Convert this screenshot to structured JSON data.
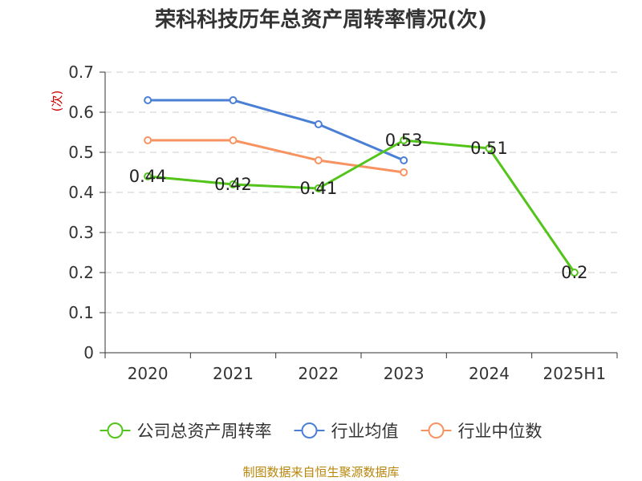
{
  "chart_data": {
    "type": "line",
    "title": "荣科科技历年总资产周转率情况(次)",
    "ylabel": "(次)",
    "xlabel": "",
    "categories": [
      "2020",
      "2021",
      "2022",
      "2023",
      "2024",
      "2025H1"
    ],
    "ylim": [
      0,
      0.7
    ],
    "yticks": [
      "0",
      "0.1",
      "0.2",
      "0.3",
      "0.4",
      "0.5",
      "0.6",
      "0.7"
    ],
    "grid": true,
    "legend_position": "bottom",
    "series": [
      {
        "name": "公司总资产周转率",
        "color": "#52c41a",
        "values": [
          0.44,
          0.42,
          0.41,
          0.53,
          0.51,
          0.2
        ],
        "labels": [
          "0.44",
          "0.42",
          "0.41",
          "0.53",
          "0.51",
          "0.2"
        ]
      },
      {
        "name": "行业均值",
        "color": "#4a7fd6",
        "values": [
          0.63,
          0.63,
          0.57,
          0.48,
          null,
          null
        ]
      },
      {
        "name": "行业中位数",
        "color": "#f79361",
        "values": [
          0.53,
          0.53,
          0.48,
          0.45,
          null,
          null
        ]
      }
    ]
  },
  "source": "制图数据来自恒生聚源数据库"
}
